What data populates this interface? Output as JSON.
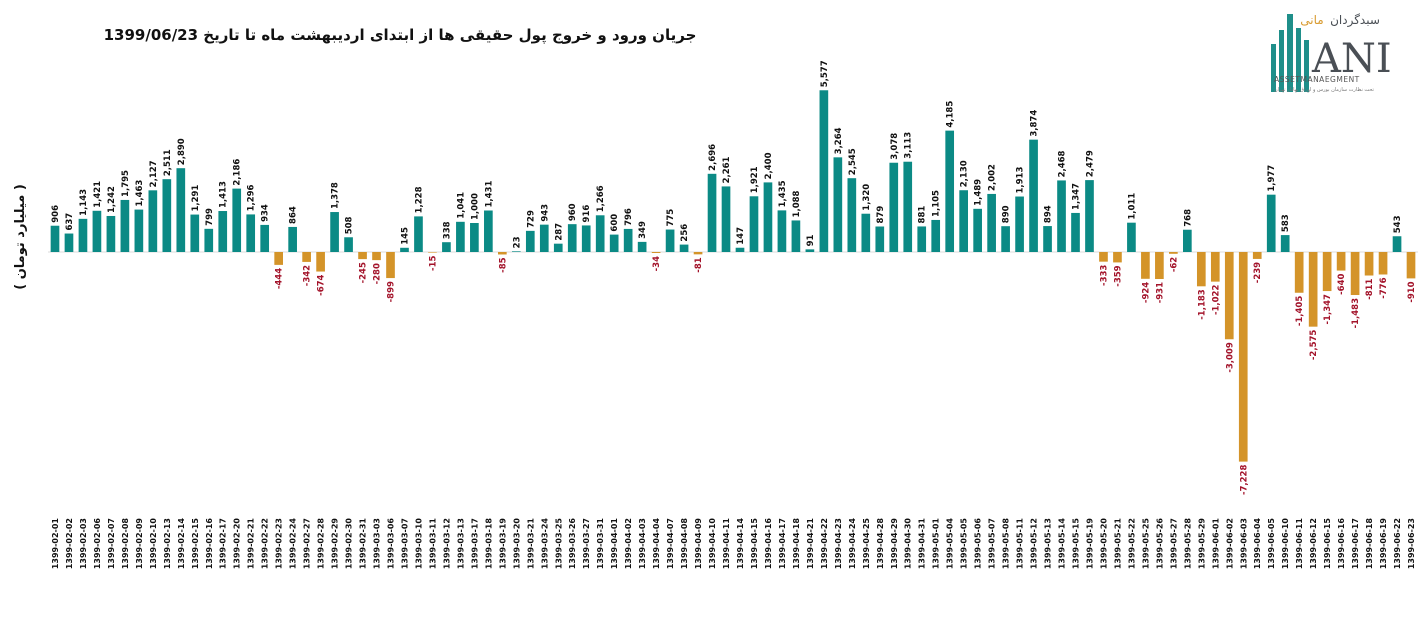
{
  "chart_data": {
    "type": "bar",
    "title": "جریان ورود و خروج پول حقیقی ها از ابتدای اردیبهشت ماه تا تاریخ 1399/06/23",
    "ylabel": "( میلیارد تومان )",
    "xlabel": "",
    "ylim": [
      -7228,
      5577
    ],
    "colors": {
      "positive": "#0b8a85",
      "negative": "#d49429",
      "positive_label": "#111111",
      "negative_label": "#a3132a"
    },
    "categories": [
      "1399-02-01",
      "1399-02-02",
      "1399-02-03",
      "1399-02-06",
      "1399-02-07",
      "1399-02-08",
      "1399-02-09",
      "1399-02-10",
      "1399-02-13",
      "1399-02-14",
      "1399-02-15",
      "1399-02-16",
      "1399-02-17",
      "1399-02-20",
      "1399-02-21",
      "1399-02-22",
      "1399-02-23",
      "1399-02-24",
      "1399-02-27",
      "1399-02-28",
      "1399-02-29",
      "1399-02-30",
      "1399-02-31",
      "1399-03-03",
      "1399-03-06",
      "1399-03-07",
      "1399-03-10",
      "1399-03-11",
      "1399-03-12",
      "1399-03-13",
      "1399-03-17",
      "1399-03-18",
      "1399-03-19",
      "1399-03-20",
      "1399-03-21",
      "1399-03-24",
      "1399-03-25",
      "1399-03-26",
      "1399-03-27",
      "1399-03-31",
      "1399-04-01",
      "1399-04-02",
      "1399-04-03",
      "1399-04-04",
      "1399-04-07",
      "1399-04-08",
      "1399-04-09",
      "1399-04-10",
      "1399-04-11",
      "1399-04-14",
      "1399-04-15",
      "1399-04-16",
      "1399-04-17",
      "1399-04-18",
      "1399-04-21",
      "1399-04-22",
      "1399-04-23",
      "1399-04-24",
      "1399-04-25",
      "1399-04-28",
      "1399-04-29",
      "1399-04-30",
      "1399-04-31",
      "1399-05-01",
      "1399-05-04",
      "1399-05-05",
      "1399-05-06",
      "1399-05-07",
      "1399-05-08",
      "1399-05-11",
      "1399-05-12",
      "1399-05-13",
      "1399-05-14",
      "1399-05-15",
      "1399-05-19",
      "1399-05-20",
      "1399-05-21",
      "1399-05-22",
      "1399-05-25",
      "1399-05-26",
      "1399-05-27",
      "1399-05-28",
      "1399-05-29",
      "1399-06-01",
      "1399-06-02",
      "1399-06-03",
      "1399-06-04",
      "1399-06-05",
      "1399-06-10",
      "1399-06-11",
      "1399-06-12",
      "1399-06-15",
      "1399-06-16",
      "1399-06-17",
      "1399-06-18",
      "1399-06-19",
      "1399-06-22",
      "1399-06-23"
    ],
    "values": [
      906,
      637,
      1143,
      1421,
      1242,
      1795,
      1463,
      2127,
      2511,
      2890,
      1291,
      799,
      1413,
      2186,
      1296,
      934,
      -444,
      864,
      -342,
      -674,
      1378,
      508,
      -245,
      -280,
      -899,
      145,
      1228,
      -15,
      338,
      1041,
      1000,
      1431,
      -85,
      23,
      729,
      943,
      287,
      960,
      916,
      1266,
      600,
      796,
      349,
      -34,
      775,
      256,
      -81,
      2696,
      2261,
      147,
      1921,
      2400,
      1435,
      1088,
      91,
      5577,
      3264,
      2545,
      1320,
      879,
      3078,
      3113,
      881,
      1105,
      4185,
      2130,
      1489,
      2002,
      890,
      1913,
      3874,
      894,
      2468,
      1347,
      2479,
      -333,
      -359,
      1011,
      -924,
      -931,
      -62,
      768,
      -1183,
      -1022,
      -3009,
      -7228,
      -239,
      1977,
      583,
      -1405,
      -2575,
      -1347,
      -640,
      -1483,
      -811,
      -776,
      543,
      -910
    ],
    "value_labels": [
      "906",
      "637",
      "1,143",
      "1,421",
      "1,242",
      "1,795",
      "1,463",
      "2,127",
      "2,511",
      "2,890",
      "1,291",
      "799",
      "1,413",
      "2,186",
      "1,296",
      "934",
      "-444",
      "864",
      "-342",
      "-674",
      "1,378",
      "508",
      "-245",
      "-280",
      "-899",
      "145",
      "1,228",
      "-15",
      "338",
      "1,041",
      "1,000",
      "1,431",
      "-85",
      "23",
      "729",
      "943",
      "287",
      "960",
      "916",
      "1,266",
      "600",
      "796",
      "349",
      "-34",
      "775",
      "256",
      "-81",
      "2,696",
      "2,261",
      "147",
      "1,921",
      "2,400",
      "1,435",
      "1,088",
      "91",
      "5,577",
      "3,264",
      "2,545",
      "1,320",
      "879",
      "3,078",
      "3,113",
      "881",
      "1,105",
      "4,185",
      "2,130",
      "1,489",
      "2,002",
      "890",
      "1,913",
      "3,874",
      "894",
      "2,468",
      "1,347",
      "2,479",
      "-333",
      "-359",
      "1,011",
      "-924",
      "-931",
      "-62",
      "768",
      "-1,183",
      "-1,022",
      "-3,009",
      "-7,228",
      "-239",
      "1,977",
      "583",
      "-1,405",
      "-2,575",
      "-1,347",
      "-640",
      "-1,483",
      "-811",
      "-776",
      "543",
      "-910"
    ]
  },
  "logo": {
    "persian_name": "سبدگردان",
    "persian_accent": "مانی",
    "brand": "ANI",
    "subtitle": "ASSETMANAEGMENT",
    "tagline": "تحت نظارت سازمان بورس و اوراق بهادار تهران",
    "colors": {
      "primary": "#4a4f55",
      "accent": "#d89a2e",
      "bars": "#1f8f8a"
    }
  }
}
